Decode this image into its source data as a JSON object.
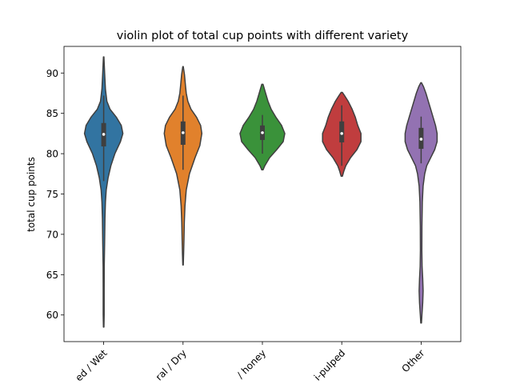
{
  "chart_data": {
    "type": "violin",
    "title": "violin plot of total cup points with different variety",
    "xlabel": "",
    "ylabel": "total cup points",
    "ylim": [
      56.7,
      93.3
    ],
    "yticks": [
      60,
      65,
      70,
      75,
      80,
      85,
      90
    ],
    "categories": [
      "Washed / Wet",
      "Natural / Dry",
      "Pulped natural / honey",
      "Semi-washed / Semi-pulped",
      "Other"
    ],
    "visible_tick_labels": [
      "ed / Wet",
      "ral / Dry",
      "/ honey",
      "i-pulped",
      "Other"
    ],
    "colors": [
      "#3274a1",
      "#e1812c",
      "#3a923a",
      "#c03d3e",
      "#9372b2"
    ],
    "violins": [
      {
        "name": "Washed / Wet",
        "min": 58.5,
        "q1": 80.9,
        "median": 82.4,
        "q3": 83.8,
        "max": 92.0,
        "whisker_low": 76.6,
        "whisker_high": 87.2,
        "density": [
          [
            58.5,
            0.3
          ],
          [
            60,
            0.6
          ],
          [
            63,
            0.6
          ],
          [
            66,
            0.7
          ],
          [
            69,
            1.2
          ],
          [
            72,
            1.6
          ],
          [
            74,
            2.2
          ],
          [
            75.5,
            3.2
          ],
          [
            77,
            5.5
          ],
          [
            78.5,
            9
          ],
          [
            80,
            14
          ],
          [
            81.5,
            21
          ],
          [
            82.5,
            24
          ],
          [
            83.5,
            22
          ],
          [
            84.5,
            16
          ],
          [
            85.5,
            8
          ],
          [
            86.5,
            4
          ],
          [
            88,
            2.2
          ],
          [
            90,
            1.2
          ],
          [
            92,
            0.3
          ]
        ]
      },
      {
        "name": "Natural / Dry",
        "min": 66.2,
        "q1": 81.1,
        "median": 82.6,
        "q3": 84.0,
        "max": 90.8,
        "whisker_low": 78.0,
        "whisker_high": 87.2,
        "density": [
          [
            66.2,
            0.3
          ],
          [
            67.5,
            0.7
          ],
          [
            69.5,
            1.2
          ],
          [
            71.5,
            1.6
          ],
          [
            73.5,
            2.4
          ],
          [
            75.5,
            4
          ],
          [
            77.5,
            8
          ],
          [
            79.5,
            15
          ],
          [
            81,
            21
          ],
          [
            82.5,
            23.5
          ],
          [
            83.5,
            22
          ],
          [
            84.5,
            17
          ],
          [
            85.5,
            10
          ],
          [
            86.5,
            6
          ],
          [
            87.5,
            4
          ],
          [
            88.5,
            3
          ],
          [
            89.8,
            1.8
          ],
          [
            90.8,
            0.3
          ]
        ]
      },
      {
        "name": "Pulped natural / honey",
        "min": 78.0,
        "q1": 81.7,
        "median": 82.6,
        "q3": 83.5,
        "max": 88.6,
        "whisker_low": 80.0,
        "whisker_high": 84.8,
        "density": [
          [
            78,
            0.8
          ],
          [
            78.5,
            3
          ],
          [
            79.5,
            9
          ],
          [
            80.5,
            18
          ],
          [
            81.5,
            26
          ],
          [
            82.5,
            28
          ],
          [
            83.5,
            24
          ],
          [
            84.5,
            17
          ],
          [
            85.5,
            11
          ],
          [
            86.5,
            7
          ],
          [
            87.5,
            4
          ],
          [
            88.6,
            0.8
          ]
        ]
      },
      {
        "name": "Semi-washed / Semi-pulped",
        "min": 77.2,
        "q1": 81.4,
        "median": 82.5,
        "q3": 84.0,
        "max": 87.6,
        "whisker_low": 78.5,
        "whisker_high": 86.0,
        "density": [
          [
            77.2,
            0.8
          ],
          [
            77.8,
            2.5
          ],
          [
            78.5,
            5
          ],
          [
            79.5,
            11
          ],
          [
            80.5,
            19
          ],
          [
            81.5,
            24
          ],
          [
            82.5,
            24
          ],
          [
            83.5,
            20
          ],
          [
            84.5,
            17
          ],
          [
            85.5,
            13
          ],
          [
            86.5,
            8
          ],
          [
            87.2,
            3.5
          ],
          [
            87.6,
            0.8
          ]
        ]
      },
      {
        "name": "Other",
        "min": 59.0,
        "q1": 80.6,
        "median": 81.8,
        "q3": 83.2,
        "max": 88.8,
        "whisker_low": 78.8,
        "whisker_high": 84.6,
        "density": [
          [
            59,
            0.4
          ],
          [
            60,
            1
          ],
          [
            61.5,
            2
          ],
          [
            63,
            2.5
          ],
          [
            64.5,
            2
          ],
          [
            66,
            1.2
          ],
          [
            68,
            0.9
          ],
          [
            71,
            1
          ],
          [
            74,
            1.5
          ],
          [
            76,
            2.5
          ],
          [
            77.5,
            4.5
          ],
          [
            78.5,
            7
          ],
          [
            79.5,
            12
          ],
          [
            80.5,
            17
          ],
          [
            81.5,
            20
          ],
          [
            82.5,
            20
          ],
          [
            83.5,
            18
          ],
          [
            84.5,
            15
          ],
          [
            85.5,
            12
          ],
          [
            86.5,
            9
          ],
          [
            87.5,
            6
          ],
          [
            88.3,
            3
          ],
          [
            88.8,
            0.4
          ]
        ]
      }
    ]
  }
}
